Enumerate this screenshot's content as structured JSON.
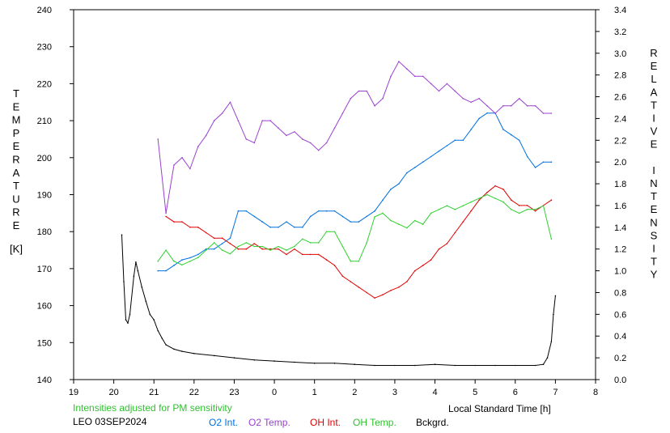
{
  "chart_data": {
    "type": "line",
    "title": "",
    "xlabel": "Local Standard Time [h]",
    "ylabel": "TEMPERATURE [K]",
    "ylabel_right": "RELATIVE INTENSITY",
    "left_axis_letters": [
      "T",
      "E",
      "M",
      "P",
      "E",
      "R",
      "A",
      "T",
      "U",
      "R",
      "E"
    ],
    "left_axis_unit": "[K]",
    "right_axis_letters": [
      "R",
      "E",
      "L",
      "A",
      "T",
      "I",
      "V",
      "E",
      "",
      "I",
      "N",
      "T",
      "E",
      "N",
      "S",
      "I",
      "T",
      "Y"
    ],
    "x_ticks": [
      "19",
      "20",
      "21",
      "22",
      "23",
      "0",
      "1",
      "2",
      "3",
      "4",
      "5",
      "6",
      "7",
      "8"
    ],
    "y_ticks": [
      "140",
      "150",
      "160",
      "170",
      "180",
      "190",
      "200",
      "210",
      "220",
      "230",
      "240"
    ],
    "y2_ticks": [
      "0.0",
      "0.2",
      "0.4",
      "0.6",
      "0.8",
      "1.0",
      "1.2",
      "1.4",
      "1.6",
      "1.8",
      "2.0",
      "2.2",
      "2.4",
      "2.6",
      "2.8",
      "3.0",
      "3.2",
      "3.4"
    ],
    "xlim": [
      19,
      32
    ],
    "ylim": [
      140,
      240
    ],
    "y2lim": [
      0,
      3.4
    ],
    "grid": false,
    "annotation": "Intensities adjusted for PM sensitivity",
    "station_date": "LEO 03SEP2024",
    "series": [
      {
        "name": "O2 Int.",
        "axis": "right",
        "color": "#0070e0",
        "x": [
          21.1,
          21.3,
          21.5,
          21.7,
          21.9,
          22.1,
          22.3,
          22.5,
          22.7,
          22.9,
          23.1,
          23.3,
          23.5,
          23.7,
          23.9,
          24.1,
          24.3,
          24.5,
          24.7,
          24.9,
          25.1,
          25.3,
          25.5,
          25.7,
          25.9,
          26.1,
          26.3,
          26.5,
          26.7,
          26.9,
          27.1,
          27.3,
          27.5,
          27.7,
          27.9,
          28.1,
          28.3,
          28.5,
          28.7,
          28.9,
          29.1,
          29.3,
          29.5,
          29.7,
          29.9,
          30.1,
          30.3,
          30.5,
          30.7,
          30.9
        ],
        "y": [
          1.0,
          1.0,
          1.05,
          1.1,
          1.12,
          1.15,
          1.2,
          1.2,
          1.25,
          1.3,
          1.55,
          1.55,
          1.5,
          1.45,
          1.4,
          1.4,
          1.45,
          1.4,
          1.4,
          1.5,
          1.55,
          1.55,
          1.55,
          1.5,
          1.45,
          1.45,
          1.5,
          1.55,
          1.65,
          1.75,
          1.8,
          1.9,
          1.95,
          2.0,
          2.05,
          2.1,
          2.15,
          2.2,
          2.2,
          2.3,
          2.4,
          2.45,
          2.45,
          2.3,
          2.25,
          2.2,
          2.05,
          1.95,
          2.0,
          2.0
        ]
      },
      {
        "name": "O2 Temp.",
        "axis": "left",
        "color": "#9a40d0",
        "x": [
          21.1,
          21.3,
          21.5,
          21.7,
          21.9,
          22.1,
          22.3,
          22.5,
          22.7,
          22.9,
          23.1,
          23.3,
          23.5,
          23.7,
          23.9,
          24.1,
          24.3,
          24.5,
          24.7,
          24.9,
          25.1,
          25.3,
          25.5,
          25.7,
          25.9,
          26.1,
          26.3,
          26.5,
          26.7,
          26.9,
          27.1,
          27.3,
          27.5,
          27.7,
          27.9,
          28.1,
          28.3,
          28.5,
          28.7,
          28.9,
          29.1,
          29.3,
          29.5,
          29.7,
          29.9,
          30.1,
          30.3,
          30.5,
          30.7,
          30.9
        ],
        "y": [
          205,
          185,
          198,
          200,
          197,
          203,
          206,
          210,
          212,
          215,
          210,
          205,
          204,
          210,
          210,
          208,
          206,
          207,
          205,
          204,
          202,
          204,
          208,
          212,
          216,
          218,
          218,
          214,
          216,
          222,
          226,
          224,
          222,
          222,
          220,
          218,
          220,
          218,
          216,
          215,
          216,
          214,
          212,
          214,
          214,
          216,
          214,
          214,
          212,
          212
        ]
      },
      {
        "name": "OH Int.",
        "axis": "right",
        "color": "#e00000",
        "x": [
          21.3,
          21.5,
          21.7,
          21.9,
          22.1,
          22.3,
          22.5,
          22.7,
          22.9,
          23.1,
          23.3,
          23.5,
          23.7,
          23.9,
          24.1,
          24.3,
          24.5,
          24.7,
          24.9,
          25.1,
          25.3,
          25.5,
          25.7,
          25.9,
          26.1,
          26.3,
          26.5,
          26.7,
          26.9,
          27.1,
          27.3,
          27.5,
          27.7,
          27.9,
          28.1,
          28.3,
          28.5,
          28.7,
          28.9,
          29.1,
          29.3,
          29.5,
          29.7,
          29.9,
          30.1,
          30.3,
          30.5,
          30.7,
          30.9
        ],
        "y": [
          1.5,
          1.45,
          1.45,
          1.4,
          1.4,
          1.35,
          1.3,
          1.3,
          1.25,
          1.2,
          1.2,
          1.25,
          1.2,
          1.2,
          1.2,
          1.15,
          1.2,
          1.15,
          1.15,
          1.15,
          1.1,
          1.05,
          0.95,
          0.9,
          0.85,
          0.8,
          0.75,
          0.78,
          0.82,
          0.85,
          0.9,
          1.0,
          1.05,
          1.1,
          1.2,
          1.25,
          1.35,
          1.45,
          1.55,
          1.65,
          1.72,
          1.78,
          1.75,
          1.65,
          1.6,
          1.6,
          1.55,
          1.6,
          1.65
        ]
      },
      {
        "name": "OH Temp.",
        "axis": "left",
        "color": "#30d030",
        "x": [
          21.1,
          21.3,
          21.5,
          21.7,
          21.9,
          22.1,
          22.3,
          22.5,
          22.7,
          22.9,
          23.1,
          23.3,
          23.5,
          23.7,
          23.9,
          24.1,
          24.3,
          24.5,
          24.7,
          24.9,
          25.1,
          25.3,
          25.5,
          25.7,
          25.9,
          26.1,
          26.3,
          26.5,
          26.7,
          26.9,
          27.1,
          27.3,
          27.5,
          27.7,
          27.9,
          28.1,
          28.3,
          28.5,
          28.7,
          28.9,
          29.1,
          29.3,
          29.5,
          29.7,
          29.9,
          30.1,
          30.3,
          30.5,
          30.7,
          30.9
        ],
        "y": [
          172,
          175,
          172,
          171,
          172,
          173,
          175,
          177,
          175,
          174,
          176,
          177,
          176,
          176,
          175,
          176,
          175,
          176,
          178,
          177,
          177,
          180,
          180,
          176,
          172,
          172,
          177,
          184,
          185,
          183,
          182,
          181,
          183,
          182,
          185,
          186,
          187,
          186,
          187,
          188,
          189,
          190,
          189,
          188,
          186,
          185,
          186,
          186,
          187,
          178
        ]
      },
      {
        "name": "Bckgrd.",
        "axis": "right",
        "color": "#000000",
        "x": [
          20.2,
          20.25,
          20.3,
          20.35,
          20.4,
          20.5,
          20.55,
          20.6,
          20.7,
          20.8,
          20.9,
          21.0,
          21.1,
          21.2,
          21.3,
          21.5,
          21.7,
          22.0,
          22.5,
          23.0,
          23.5,
          24.0,
          24.5,
          25.0,
          25.5,
          26.0,
          26.5,
          27.0,
          27.5,
          28.0,
          28.5,
          29.0,
          29.5,
          30.0,
          30.5,
          30.7,
          30.8,
          30.9,
          30.95,
          31.0
        ],
        "y": [
          1.33,
          0.9,
          0.55,
          0.52,
          0.6,
          0.95,
          1.08,
          1.0,
          0.85,
          0.72,
          0.6,
          0.55,
          0.45,
          0.38,
          0.32,
          0.28,
          0.26,
          0.24,
          0.22,
          0.2,
          0.18,
          0.17,
          0.16,
          0.15,
          0.15,
          0.14,
          0.13,
          0.13,
          0.13,
          0.14,
          0.13,
          0.13,
          0.13,
          0.13,
          0.13,
          0.14,
          0.2,
          0.35,
          0.6,
          0.77
        ]
      }
    ]
  }
}
